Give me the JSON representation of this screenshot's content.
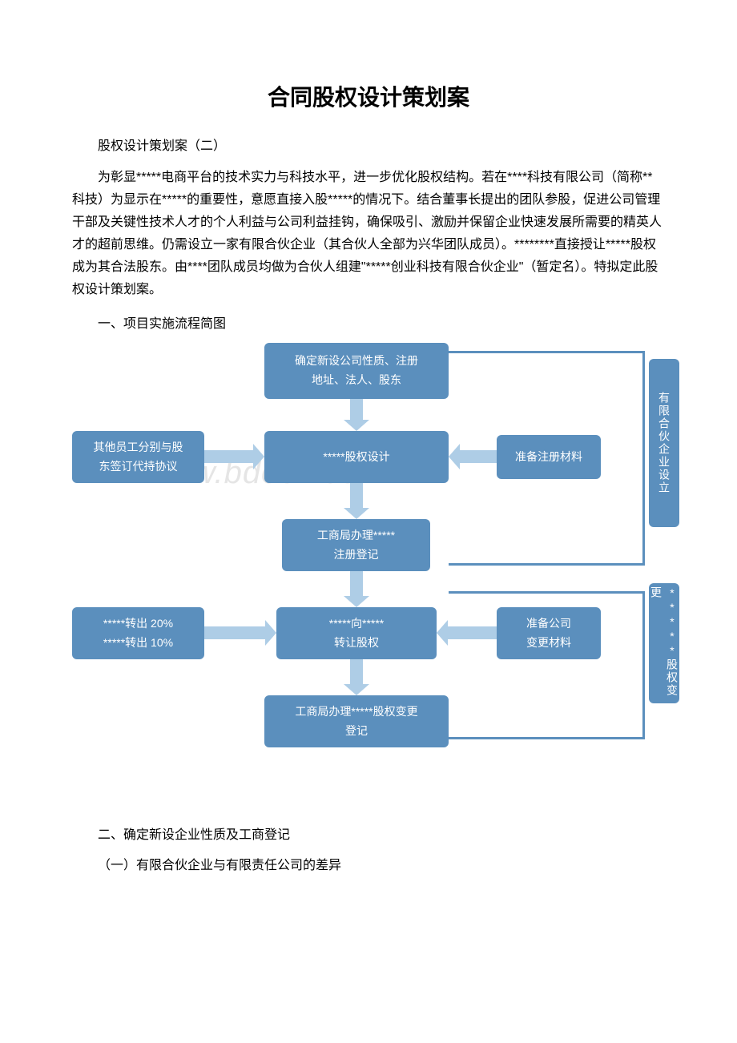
{
  "title": "合同股权设计策划案",
  "subtitle": "股权设计策划案（二）",
  "paragraph": "为彰显*****电商平台的技术实力与科技水平，进一步优化股权结构。若在****科技有限公司（简称**科技）为显示在*****的重要性，意愿直接入股*****的情况下。结合董事长提出的团队参股，促进公司管理干部及关键性技术人才的个人利益与公司利益挂钩，确保吸引、激励并保留企业快速发展所需要的精英人才的超前思维。仍需设立一家有限合伙企业（其合伙人全部为兴华团队成员）。********直接授让*****股权成为其合法股东。由****团队成员均做为合伙人组建\"*****创业科技有限合伙企业\"（暂定名）。特拟定此股权设计策划案。",
  "section1": "一、项目实施流程简图",
  "section2": "二、确定新设企业性质及工商登记",
  "section2_1": "（一）有限合伙企业与有限责任公司的差异",
  "watermark": "www.bdocx.com",
  "flow": {
    "type": "flowchart",
    "box_color": "#5b8fbd",
    "text_color": "#ffffff",
    "arrow_color": "#aecde6",
    "bracket_color": "#5b8fbd",
    "n1": "确定新设公司性质、注册\n地址、法人、股东",
    "n2_left": "其他员工分别与股\n东签订代持协议",
    "n2_mid": "*****股权设计",
    "n2_right": "准备注册材料",
    "n3": "工商局办理*****\n注册登记",
    "n4_left": "*****转出 20%\n*****转出 10%",
    "n4_mid": "*****向*****\n转让股权",
    "n4_right": "准备公司\n变更材料",
    "n5": "工商局办理*****股权变更\n登记",
    "side1": "有限合伙企业设立",
    "side2": "*****股权变更"
  }
}
